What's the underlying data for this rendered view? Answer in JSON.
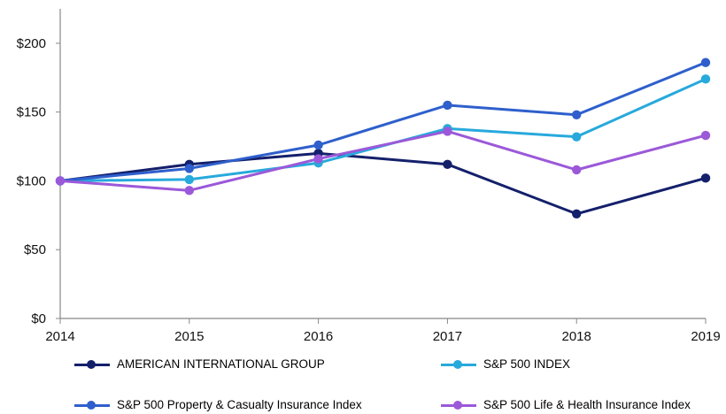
{
  "chart_data": {
    "type": "line",
    "x": [
      "2014",
      "2015",
      "2016",
      "2017",
      "2018",
      "2019"
    ],
    "y_ticks": [
      "$0",
      "$50",
      "$100",
      "$150",
      "$200"
    ],
    "ylim": [
      0,
      225
    ],
    "grid": false,
    "legend_position": "bottom",
    "series": [
      {
        "name": "AMERICAN INTERNATIONAL GROUP",
        "color": "#14206b",
        "values": [
          100,
          112,
          120,
          112,
          76,
          102
        ]
      },
      {
        "name": "S&P 500 INDEX",
        "color": "#27a9dc",
        "values": [
          100,
          101,
          113,
          138,
          132,
          174
        ]
      },
      {
        "name": "S&P 500 Property & Casualty Insurance Index",
        "color": "#2e5fcc",
        "values": [
          100,
          109,
          126,
          155,
          148,
          186
        ]
      },
      {
        "name": "S&P 500 Life & Health Insurance Index",
        "color": "#9b59d9",
        "values": [
          100,
          93,
          116,
          136,
          108,
          133
        ]
      }
    ]
  }
}
